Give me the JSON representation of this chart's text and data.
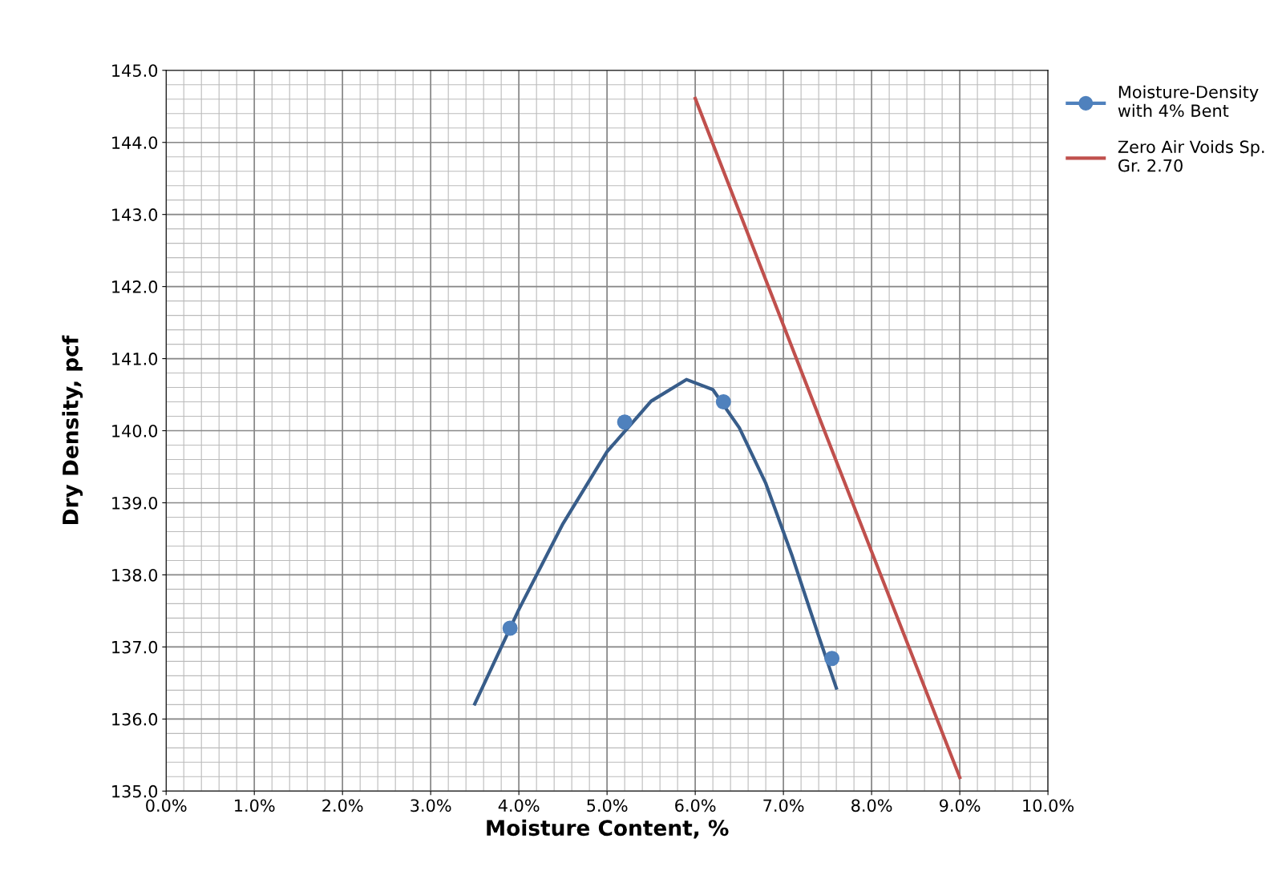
{
  "chart_data": {
    "type": "line",
    "xlabel": "Moisture Content, %",
    "ylabel": "Dry Density, pcf",
    "xlim": [
      0,
      10
    ],
    "ylim": [
      135,
      145
    ],
    "xticks": [
      {
        "value": 0,
        "label": "0.0%"
      },
      {
        "value": 1,
        "label": "1.0%"
      },
      {
        "value": 2,
        "label": "2.0%"
      },
      {
        "value": 3,
        "label": "3.0%"
      },
      {
        "value": 4,
        "label": "4.0%"
      },
      {
        "value": 5,
        "label": "5.0%"
      },
      {
        "value": 6,
        "label": "6.0%"
      },
      {
        "value": 7,
        "label": "7.0%"
      },
      {
        "value": 8,
        "label": "8.0%"
      },
      {
        "value": 9,
        "label": "9.0%"
      },
      {
        "value": 10,
        "label": "10.0%"
      }
    ],
    "yticks": [
      {
        "value": 135,
        "label": "135.0"
      },
      {
        "value": 136,
        "label": "136.0"
      },
      {
        "value": 137,
        "label": "137.0"
      },
      {
        "value": 138,
        "label": "138.0"
      },
      {
        "value": 139,
        "label": "139.0"
      },
      {
        "value": 140,
        "label": "140.0"
      },
      {
        "value": 141,
        "label": "141.0"
      },
      {
        "value": 142,
        "label": "142.0"
      },
      {
        "value": 143,
        "label": "143.0"
      },
      {
        "value": 144,
        "label": "144.0"
      },
      {
        "value": 145,
        "label": "145.0"
      }
    ],
    "grid": true,
    "legend": "right",
    "series": [
      {
        "name": "Moisture-Density with 4% Bent",
        "type": "scatter",
        "marker": "circle",
        "color": "#4f81bd",
        "x": [
          3.9,
          5.2,
          6.32,
          7.55
        ],
        "values": [
          137.26,
          140.12,
          140.4,
          136.84
        ]
      },
      {
        "color": "#385d8a",
        "x": [
          3.5,
          4.0,
          4.5,
          5.0,
          5.5,
          5.9,
          6.2,
          6.5,
          6.8,
          7.1,
          7.4,
          7.6
        ],
        "values": [
          136.21,
          137.52,
          138.71,
          139.71,
          140.41,
          140.71,
          140.57,
          140.04,
          139.27,
          138.26,
          137.15,
          136.43
        ]
      },
      {
        "name": "Zero Air Voids Sp. Gr. 2.70",
        "color": "#c0504d",
        "x": [
          6.0,
          7.5,
          9.0
        ],
        "values": [
          144.61,
          139.89,
          135.19
        ]
      }
    ]
  }
}
